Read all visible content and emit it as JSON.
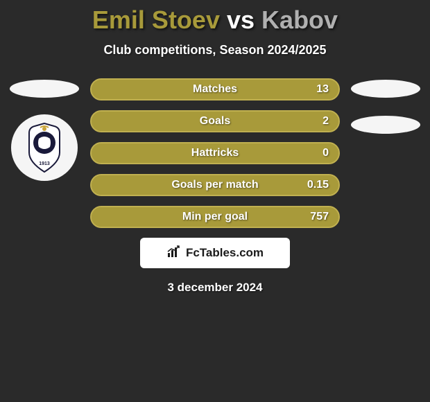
{
  "title": {
    "player1": "Emil Stoev",
    "vs": "vs",
    "player2": "Kabov",
    "player1_color": "#a89a3a",
    "vs_color": "#ffffff",
    "player2_color": "#b0b0b0"
  },
  "subtitle": "Club competitions, Season 2024/2025",
  "colors": {
    "bar_bg": "#a89a3a",
    "bar_border": "#c0b050",
    "background": "#2a2a2a"
  },
  "stats": [
    {
      "label": "Matches",
      "value": "13",
      "fill_pct": 100
    },
    {
      "label": "Goals",
      "value": "2",
      "fill_pct": 100
    },
    {
      "label": "Hattricks",
      "value": "0",
      "fill_pct": 100
    },
    {
      "label": "Goals per match",
      "value": "0.15",
      "fill_pct": 100
    },
    {
      "label": "Min per goal",
      "value": "757",
      "fill_pct": 100
    }
  ],
  "brand": {
    "icon": "chart-icon",
    "text": "FcTables.com"
  },
  "date": "3 december 2024",
  "left_side": {
    "ellipses": 1,
    "has_badge": true
  },
  "right_side": {
    "ellipses": 2,
    "has_badge": false
  }
}
